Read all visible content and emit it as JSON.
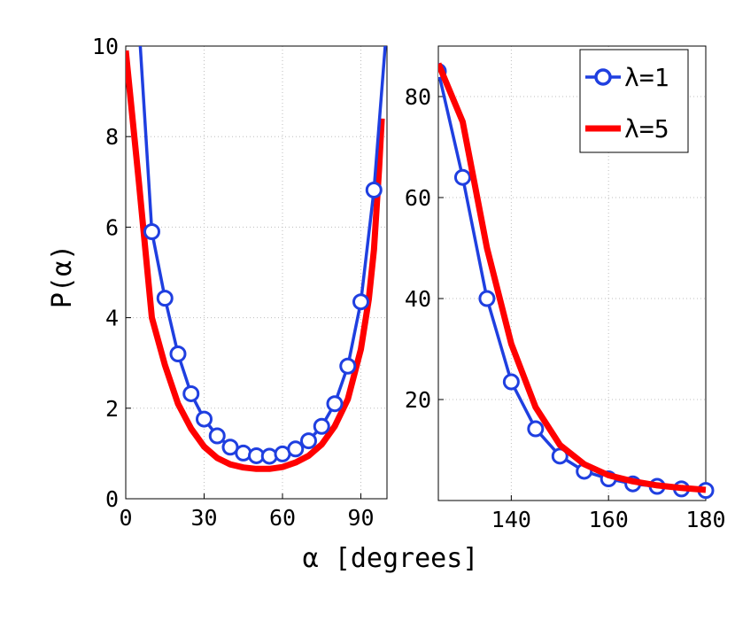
{
  "chart_data": {
    "type": "line",
    "ylabel": "P(α)",
    "xlabel": "α [degrees]",
    "legend": {
      "placement": "top-right",
      "entries": [
        "λ=1",
        "λ=5"
      ]
    },
    "grid": true,
    "colors": {
      "lambda1": "#1f3fe0",
      "lambda5": "#ff0000"
    },
    "panels": [
      {
        "name": "left",
        "xlim": [
          0,
          100
        ],
        "ylim": [
          0,
          10
        ],
        "xticks": [
          0,
          30,
          60,
          90
        ],
        "yticks": [
          0,
          2,
          4,
          6,
          8,
          10
        ],
        "series": [
          {
            "name": "λ=1",
            "marker": "circle",
            "x": [
              5,
              10,
              15,
              20,
              25,
              30,
              35,
              40,
              45,
              50,
              55,
              60,
              65,
              70,
              75,
              80,
              85,
              90,
              95,
              100
            ],
            "y": [
              10.5,
              5.9,
              4.43,
              3.2,
              2.32,
              1.76,
              1.39,
              1.14,
              1.01,
              0.95,
              0.94,
              0.99,
              1.1,
              1.28,
              1.6,
              2.1,
              2.93,
              4.35,
              6.82,
              10.5
            ]
          },
          {
            "name": "λ=5",
            "marker": "none",
            "x": [
              0,
              5,
              10,
              15,
              20,
              25,
              30,
              35,
              40,
              45,
              50,
              55,
              60,
              65,
              70,
              75,
              80,
              85,
              90,
              93,
              95,
              97,
              98
            ],
            "y": [
              9.9,
              7.0,
              4.0,
              2.95,
              2.1,
              1.55,
              1.15,
              0.9,
              0.76,
              0.69,
              0.66,
              0.66,
              0.7,
              0.8,
              0.95,
              1.2,
              1.6,
              2.2,
              3.3,
              4.4,
              5.5,
              7.3,
              8.4
            ]
          }
        ]
      },
      {
        "name": "right",
        "xlim": [
          125,
          180
        ],
        "ylim": [
          0,
          90
        ],
        "xticks": [
          140,
          160,
          180
        ],
        "yticks": [
          20,
          40,
          60,
          80
        ],
        "series": [
          {
            "name": "λ=1",
            "marker": "circle",
            "x": [
              125,
              130,
              135,
              140,
              145,
              150,
              155,
              160,
              165,
              170,
              175,
              180
            ],
            "y": [
              85.0,
              64.0,
              40.0,
              23.5,
              14.2,
              8.8,
              5.8,
              4.3,
              3.3,
              2.8,
              2.3,
              2.0
            ]
          },
          {
            "name": "λ=5",
            "marker": "none",
            "x": [
              125,
              130,
              135,
              140,
              145,
              150,
              155,
              160,
              165,
              170,
              175,
              180
            ],
            "y": [
              86.5,
              75.0,
              50.0,
              31.0,
              18.5,
              11.0,
              7.2,
              5.0,
              3.8,
              3.0,
              2.5,
              2.1
            ]
          }
        ]
      }
    ]
  }
}
